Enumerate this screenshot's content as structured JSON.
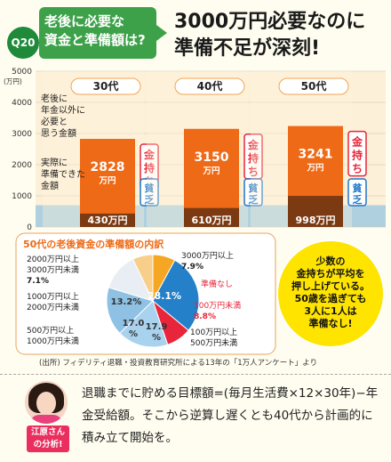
{
  "header": {
    "q_number": "Q20",
    "question_line1": "老後に必要な",
    "question_line2": "資金と準備額は?",
    "headline_line1": "3000万円必要なのに",
    "headline_line2": "準備不足が深刻!"
  },
  "colors": {
    "required": "#ee6a16",
    "prepared": "#7b3a12",
    "bg_band": "#6fb6e4",
    "rich": "#e8253a",
    "poor": "#1f77c8"
  },
  "chart_data": [
    {
      "type": "bar",
      "categories": [
        "30代",
        "40代",
        "50代"
      ],
      "series": [
        {
          "name": "老後に年金以外に必要と思う金額",
          "values": [
            2828,
            3150,
            3241
          ]
        },
        {
          "name": "実際に準備できた金額",
          "values": [
            430,
            610,
            998
          ]
        }
      ],
      "ylim": [
        0,
        5000
      ],
      "yticks": [
        "0",
        "1000",
        "2000",
        "3000",
        "4000",
        "5000"
      ],
      "ylabel": "(万円)",
      "value_labels_required": [
        "2828\n万円",
        "3150\n万円",
        "3241\n万円"
      ],
      "value_labels_prepared": [
        "430万円",
        "610万円",
        "998万円"
      ],
      "required_label": [
        "老後に",
        "年金以外に",
        "必要と",
        "思う金額"
      ],
      "prepared_label": [
        "実際に",
        "準備できた",
        "金額"
      ],
      "rich_tag": "金持ち",
      "poor_tag": "貧乏"
    },
    {
      "type": "pie",
      "title": "50代の老後資金の準備額の内訳",
      "slices": [
        {
          "label": "3000万円以上",
          "value": 7.9
        },
        {
          "label": "準備なし",
          "value": 28.1
        },
        {
          "label": "100万円未満",
          "value": 8.8
        },
        {
          "label": "100万円以上 500万円未満",
          "value": 17.9
        },
        {
          "label": "500万円以上 1000万円未満",
          "value": 17.0
        },
        {
          "label": "1000万円以上 2000万円未満",
          "value": 13.2
        },
        {
          "label": "2000万円以上 3000万円未満",
          "value": 7.1
        }
      ]
    }
  ],
  "callout": [
    "少数の",
    "金持ちが平均を",
    "押し上げている。",
    "50歳を過ぎても",
    "3人に1人は",
    "準備なし!"
  ],
  "source": "(出所) フィデリティ退職・投資教育研究所による13年の「1万人アンケート」より",
  "advisor": {
    "label_line1": "江原さん",
    "label_line2": "の分析!"
  },
  "analysis": "退職までに貯める目標額=(毎月生活費×12×30年)−年金受給額。そこから逆算し遅くとも40代から計画的に積み立て開始を。"
}
